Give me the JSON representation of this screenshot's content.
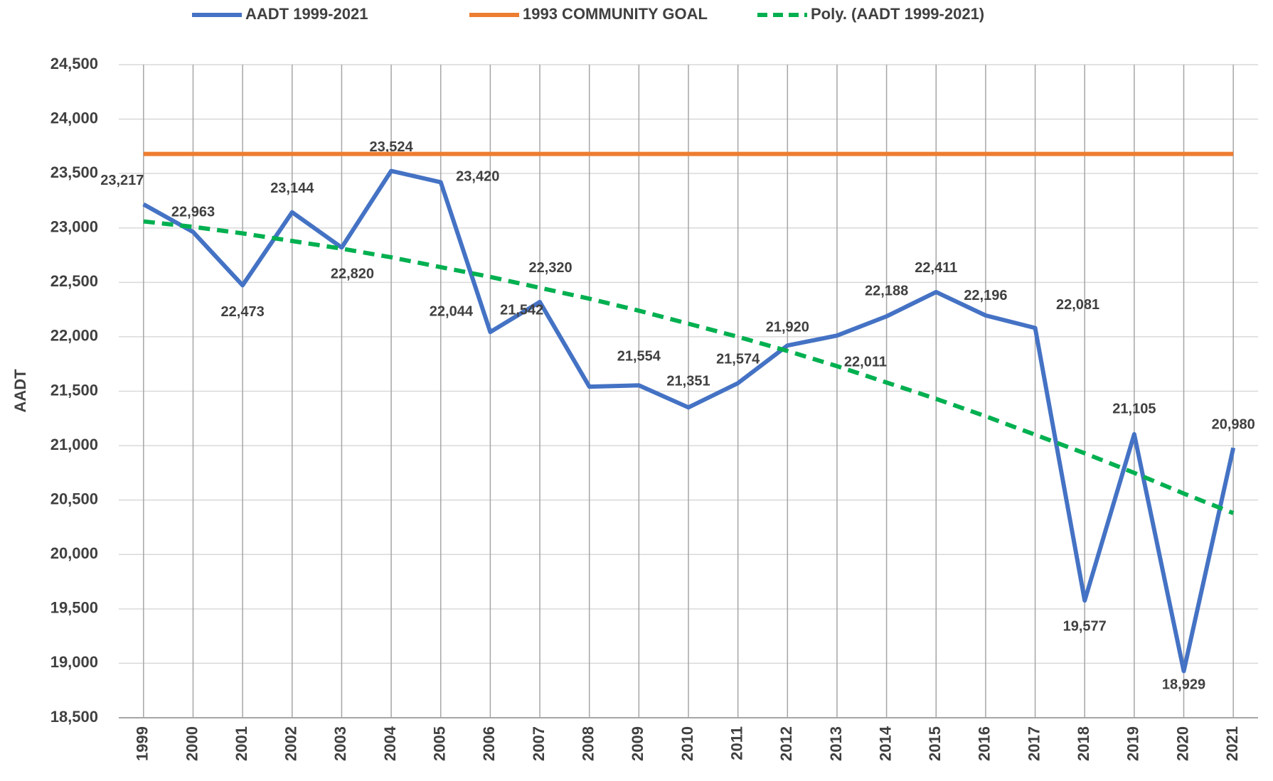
{
  "chart_data": {
    "type": "line",
    "y_axis_label": "AADT",
    "categories": [
      "1999",
      "2000",
      "2001",
      "2002",
      "2003",
      "2004",
      "2005",
      "2006",
      "2007",
      "2008",
      "2009",
      "2010",
      "2011",
      "2012",
      "2013",
      "2014",
      "2015",
      "2016",
      "2017",
      "2018",
      "2019",
      "2020",
      "2021"
    ],
    "series": [
      {
        "name": "AADT 1999-2021",
        "color": "#4472c4",
        "style": "solid",
        "values": [
          23217,
          22963,
          22473,
          23144,
          22820,
          23524,
          23420,
          22044,
          22320,
          21542,
          21554,
          21351,
          21574,
          21920,
          22011,
          22188,
          22411,
          22196,
          22081,
          19577,
          21105,
          18929,
          20980
        ],
        "value_labels": [
          "23,217",
          "22,963",
          "22,473",
          "23,144",
          "22,820",
          "23,524",
          "23,420",
          "22,044",
          "22,320",
          "21,542",
          "21,554",
          "21,351",
          "21,574",
          "21,920",
          "22,011",
          "22,188",
          "22,411",
          "22,196",
          "22,081",
          "19,577",
          "21,105",
          "18,929",
          "20,980"
        ]
      },
      {
        "name": "1993 COMMUNITY GOAL",
        "color": "#ed7d31",
        "style": "solid",
        "values": [
          23680,
          23680,
          23680,
          23680,
          23680,
          23680,
          23680,
          23680,
          23680,
          23680,
          23680,
          23680,
          23680,
          23680,
          23680,
          23680,
          23680,
          23680,
          23680,
          23680,
          23680,
          23680,
          23680
        ]
      },
      {
        "name": "Poly. (AADT 1999-2021)",
        "color": "#00b050",
        "style": "dashed",
        "values": [
          23060,
          23010,
          22950,
          22880,
          22810,
          22730,
          22640,
          22550,
          22450,
          22350,
          22240,
          22120,
          22000,
          21870,
          21730,
          21580,
          21430,
          21270,
          21100,
          20930,
          20750,
          20560,
          20380
        ]
      }
    ],
    "ylim": [
      18500,
      24500
    ],
    "yticks": [
      {
        "value": 18500,
        "label": "18,500"
      },
      {
        "value": 19000,
        "label": "19,000"
      },
      {
        "value": 19500,
        "label": "19,500"
      },
      {
        "value": 20000,
        "label": "20,000"
      },
      {
        "value": 20500,
        "label": "20,500"
      },
      {
        "value": 21000,
        "label": "21,000"
      },
      {
        "value": 21500,
        "label": "21,500"
      },
      {
        "value": 22000,
        "label": "22,000"
      },
      {
        "value": 22500,
        "label": "22,500"
      },
      {
        "value": 23000,
        "label": "23,000"
      },
      {
        "value": 23500,
        "label": "23,500"
      },
      {
        "value": 24000,
        "label": "24,000"
      },
      {
        "value": 24500,
        "label": "24,500"
      }
    ],
    "grid": true,
    "legend": "top"
  }
}
